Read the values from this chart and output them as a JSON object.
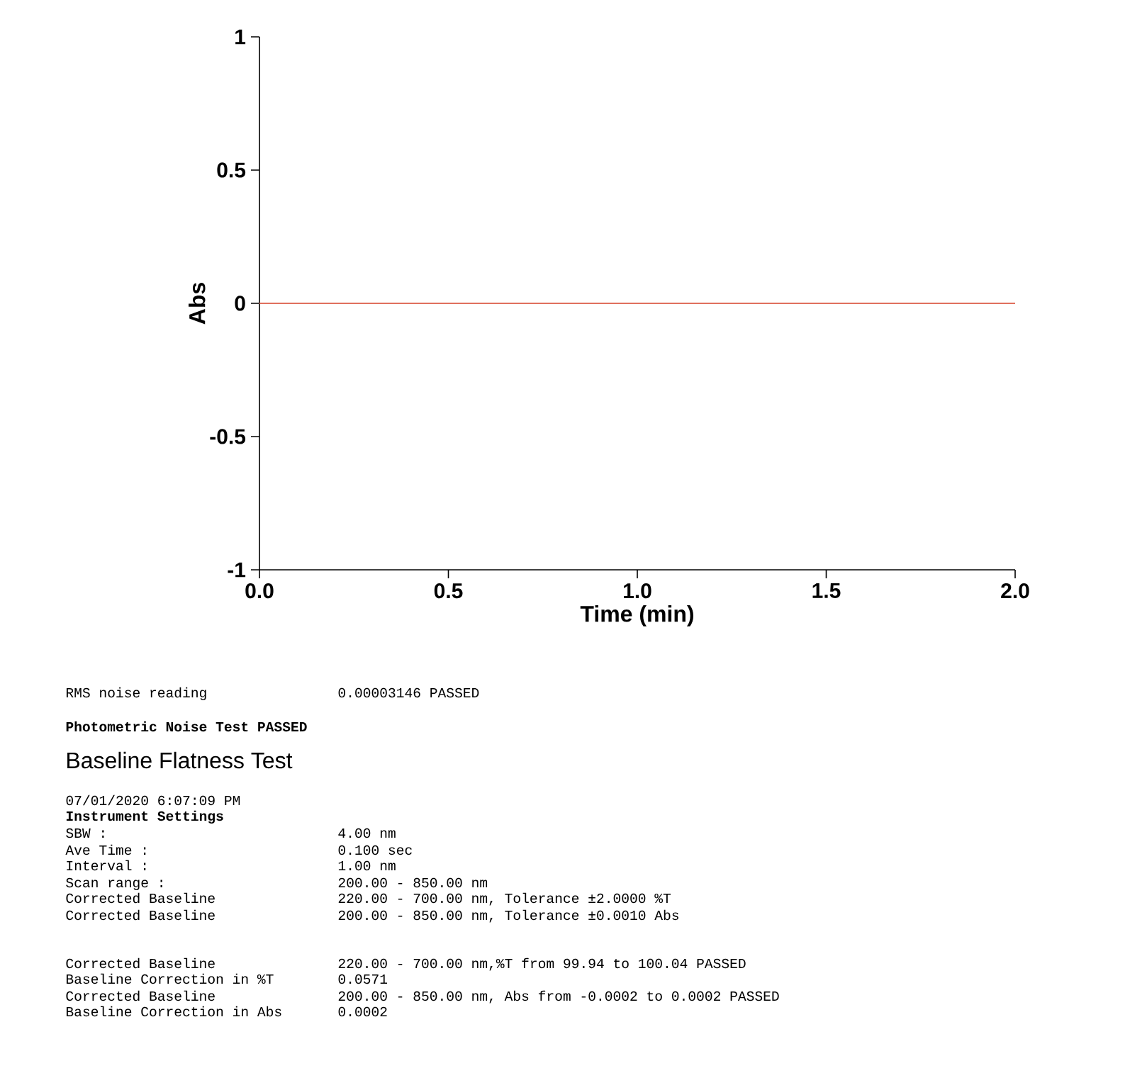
{
  "chart_data": {
    "type": "line",
    "xlabel": "Time (min)",
    "ylabel": "Abs",
    "x": [
      0,
      2
    ],
    "series": [
      {
        "color": "#e0705e",
        "values": [
          0,
          0
        ]
      }
    ],
    "xlim": [
      0,
      2
    ],
    "ylim": [
      -1,
      1
    ],
    "xticks": [
      {
        "value": 0,
        "label": "0.0"
      },
      {
        "value": 0.5,
        "label": "0.5"
      },
      {
        "value": 1,
        "label": "1.0"
      },
      {
        "value": 1.5,
        "label": "1.5"
      },
      {
        "value": 2,
        "label": "2.0"
      }
    ],
    "yticks": [
      {
        "value": -1,
        "label": "-1"
      },
      {
        "value": -0.5,
        "label": "-0.5"
      },
      0,
      0.5,
      1
    ],
    "annotations": [
      "RMS noise reading",
      "0.00003146 PASSED",
      "Photometric Noise Test PASSED",
      "Baseline Flatness Test",
      "07/01/2020 6:07:09 PM",
      "Instrument Settings",
      "SBW :",
      "4.00 nm",
      "Ave Time :",
      "0.100 sec",
      "Interval :",
      "1.00 nm",
      "Scan range :",
      "200.00 - 850.00 nm",
      "Corrected Baseline",
      "220.00 - 700.00 nm, Tolerance ±2.0000 %T",
      "Corrected Baseline",
      "200.00 - 850.00 nm, Tolerance ±0.0010 Abs",
      "Corrected Baseline",
      "220.00 - 700.00 nm,%T from 99.94 to 100.04 PASSED",
      "Baseline Correction in %T",
      "0.0571",
      "Corrected Baseline",
      "200.00 - 850.00 nm, Abs from -0.0002 to 0.0002 PASSED",
      "Baseline Correction in Abs",
      "0.0002"
    ]
  }
}
